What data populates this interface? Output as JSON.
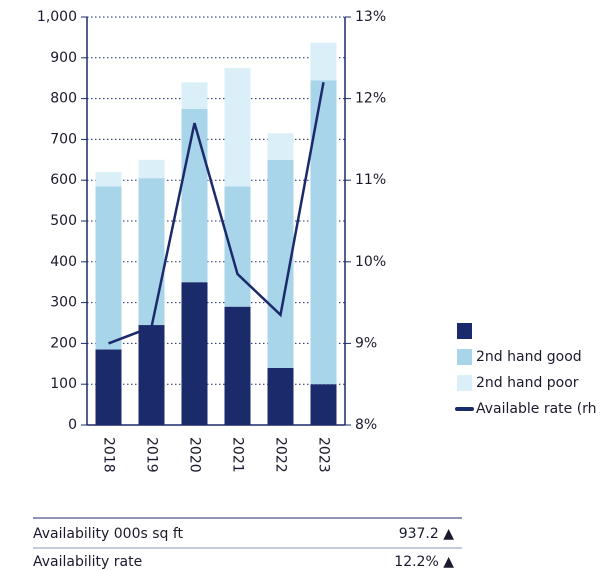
{
  "chart_data": {
    "type": "stacked_bar_line",
    "categories": [
      "2018",
      "2019",
      "2020",
      "2021",
      "2022",
      "2023"
    ],
    "series": [
      {
        "color": "#1b2a6b",
        "values": [
          185,
          245,
          350,
          290,
          140,
          100
        ]
      },
      {
        "name": "2nd hand good",
        "color": "#a8d5ea",
        "values": [
          400,
          360,
          425,
          295,
          510,
          745
        ]
      },
      {
        "name": "2nd hand poor",
        "color": "#dbeff8",
        "values": [
          35,
          45,
          65,
          290,
          65,
          92
        ]
      },
      {
        "name": "Available rate (rh",
        "color": "#1b2a6b",
        "axis": "y2",
        "line": true,
        "values": [
          9.0,
          9.2,
          11.7,
          9.85,
          9.35,
          12.2
        ]
      }
    ],
    "ylim": [
      0,
      1000
    ],
    "yticks": [
      0,
      100,
      200,
      300,
      400,
      500,
      600,
      700,
      800,
      900,
      {
        "value": 1000,
        "label": "1,000"
      }
    ],
    "y2lim": [
      8,
      13
    ],
    "y2ticks": [
      {
        "value": 8,
        "label": "8%"
      },
      {
        "value": 9,
        "label": "9%"
      },
      {
        "value": 10,
        "label": "10%"
      },
      {
        "value": 11,
        "label": "11%"
      },
      {
        "value": 12,
        "label": "12%"
      },
      {
        "value": 13,
        "label": "13%"
      }
    ],
    "grid": true,
    "legend": "right"
  },
  "table": {
    "rows": [
      [
        "Availability 000s sq ft",
        "937.2 ▲"
      ],
      [
        "Availability rate",
        "12.2% ▲"
      ]
    ]
  }
}
